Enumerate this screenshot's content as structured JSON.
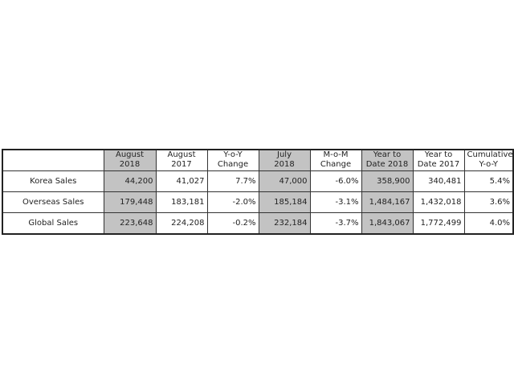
{
  "columns": [
    {
      "line1": "",
      "line2": ""
    },
    {
      "line1": "August",
      "line2": "2018",
      "highlight": true
    },
    {
      "line1": "August",
      "line2": "2017"
    },
    {
      "line1": "Y-o-Y",
      "line2": "Change"
    },
    {
      "line1": "July",
      "line2": "2018",
      "highlight": true
    },
    {
      "line1": "M-o-M",
      "line2": "Change"
    },
    {
      "line1": "Year to",
      "line2": "Date 2018",
      "highlight": true
    },
    {
      "line1": "Year to",
      "line2": "Date 2017"
    },
    {
      "line1": "Cumulative",
      "line2": "Y-o-Y"
    }
  ],
  "highlight_color": "#c3c3c3",
  "rows": [
    {
      "label": "Korea Sales",
      "cells": [
        "44,200",
        "41,027",
        "7.7%",
        "47,000",
        "-6.0%",
        "358,900",
        "340,481",
        "5.4%"
      ]
    },
    {
      "label": "Overseas Sales",
      "cells": [
        "179,448",
        "183,181",
        "-2.0%",
        "185,184",
        "-3.1%",
        "1,484,167",
        "1,432,018",
        "3.6%"
      ]
    },
    {
      "label": "Global Sales",
      "cells": [
        "223,648",
        "224,208",
        "-0.2%",
        "232,184",
        "-3.7%",
        "1,843,067",
        "1,772,499",
        "4.0%"
      ]
    }
  ]
}
